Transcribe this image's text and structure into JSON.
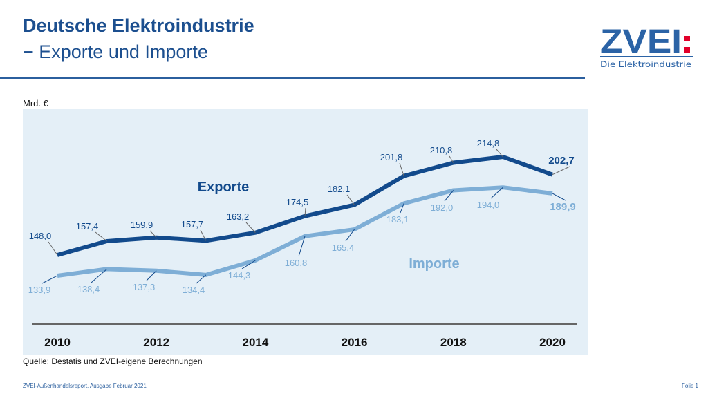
{
  "header": {
    "title": "Deutsche Elektroindustrie",
    "subtitle": "− Exporte und Importe"
  },
  "logo": {
    "text": "ZVEI",
    "colon": ":",
    "tagline": "Die Elektroindustrie",
    "colors": {
      "blue": "#2b63a6",
      "red": "#e2002a"
    }
  },
  "footer": {
    "source": "Quelle: Destatis und ZVEI-eigene Berechnungen",
    "report": "ZVEI-Außenhandelsreport, Ausgabe Februar 2021",
    "slide": "Folie 1"
  },
  "chart_data": {
    "type": "line",
    "ylabel": "Mrd. €",
    "x": [
      2010,
      2011,
      2012,
      2013,
      2014,
      2015,
      2016,
      2017,
      2018,
      2019,
      2020
    ],
    "xticks": [
      "2010",
      "2012",
      "2014",
      "2016",
      "2018",
      "2020"
    ],
    "grid": false,
    "background": "#e4eff7",
    "series": [
      {
        "name": "Exporte",
        "color": "#124a8c",
        "values": [
          148.0,
          157.4,
          159.9,
          157.7,
          163.2,
          174.5,
          182.1,
          201.8,
          210.8,
          214.8,
          202.7
        ],
        "labels": [
          "148,0",
          "157,4",
          "159,9",
          "157,7",
          "163,2",
          "174,5",
          "182,1",
          "201,8",
          "210,8",
          "214,8",
          "202,7"
        ]
      },
      {
        "name": "Importe",
        "color": "#7eaed6",
        "values": [
          133.9,
          138.4,
          137.3,
          134.4,
          144.3,
          160.8,
          165.4,
          183.1,
          192.0,
          194.0,
          189.9
        ],
        "labels": [
          "133,9",
          "138,4",
          "137,3",
          "134,4",
          "144,3",
          "160,8",
          "165,4",
          "183,1",
          "192,0",
          "194,0",
          "189,9"
        ]
      }
    ]
  }
}
